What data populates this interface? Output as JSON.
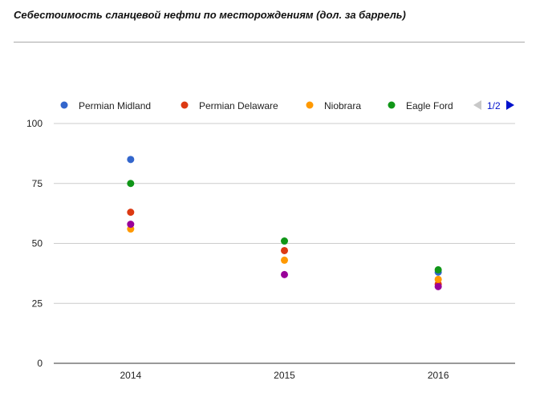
{
  "title": "Себестоимость сланцевой нефти по месторождениям (дол. за баррель)",
  "legend": {
    "page_text": "1/2",
    "items": [
      {
        "name": "Permian Midland",
        "color": "#3366cc"
      },
      {
        "name": "Permian Delaware",
        "color": "#dc3912"
      },
      {
        "name": "Niobrara",
        "color": "#ff9900"
      },
      {
        "name": "Eagle Ford",
        "color": "#109618"
      }
    ]
  },
  "chart_data": {
    "type": "scatter",
    "title": "Себестоимость сланцевой нефти по месторождениям (дол. за баррель)",
    "categories": [
      "2014",
      "2015",
      "2016"
    ],
    "ylim": [
      0,
      100
    ],
    "yticks": [
      "0",
      "25",
      "50",
      "75",
      "100"
    ],
    "grid": true,
    "legend_position": "top",
    "series": [
      {
        "name": "Permian Midland",
        "color": "#3366cc",
        "values": [
          85,
          null,
          38
        ]
      },
      {
        "name": "Permian Delaware",
        "color": "#dc3912",
        "values": [
          63,
          47,
          33
        ]
      },
      {
        "name": "Niobrara",
        "color": "#ff9900",
        "values": [
          56,
          43,
          35
        ]
      },
      {
        "name": "Eagle Ford",
        "color": "#109618",
        "values": [
          75,
          51,
          39
        ]
      },
      {
        "color": "#990099",
        "values": [
          58,
          37,
          32
        ]
      }
    ]
  }
}
